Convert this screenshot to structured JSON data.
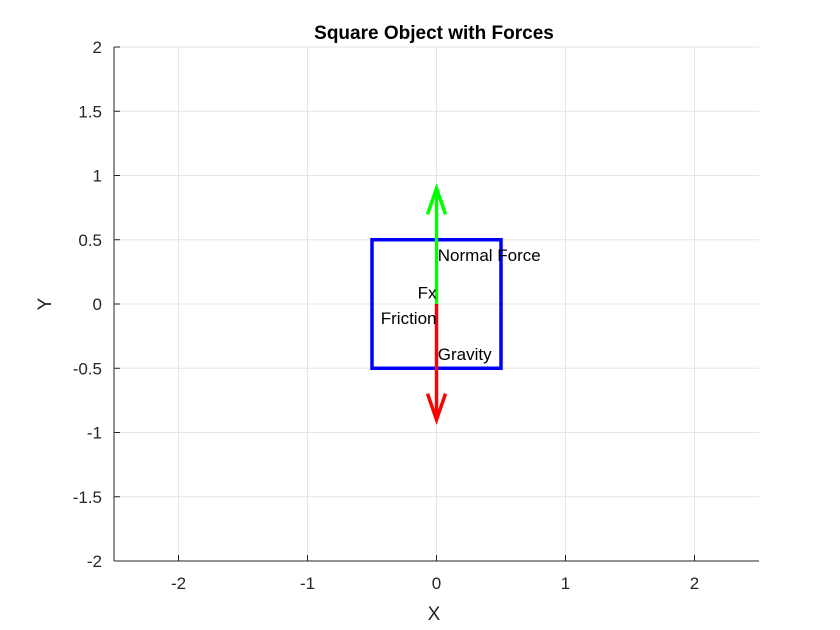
{
  "chart_data": {
    "type": "diagram",
    "title": "Square Object with Forces",
    "xlabel": "X",
    "ylabel": "Y",
    "xlim": [
      -2.5,
      2.5
    ],
    "ylim": [
      -2,
      2
    ],
    "xticks": [
      -2,
      -1,
      0,
      1,
      2
    ],
    "yticks": [
      -2,
      -1.5,
      -1,
      -0.5,
      0,
      0.5,
      1,
      1.5,
      2
    ],
    "xtick_labels": [
      "-2",
      "-1",
      "0",
      "1",
      "2"
    ],
    "ytick_labels": [
      "-2",
      "-1.5",
      "-1",
      "-0.5",
      "0",
      "0.5",
      "1",
      "1.5",
      "2"
    ],
    "grid": true,
    "square": {
      "corners": [
        [
          -0.5,
          -0.5
        ],
        [
          0.5,
          -0.5
        ],
        [
          0.5,
          0.5
        ],
        [
          -0.5,
          0.5
        ]
      ],
      "color": "#0000ff"
    },
    "forces": [
      {
        "name": "Normal Force",
        "origin": [
          0,
          0
        ],
        "vector": [
          0,
          0.9
        ],
        "color": "#00ff00"
      },
      {
        "name": "Gravity",
        "origin": [
          0,
          0
        ],
        "vector": [
          0,
          -0.9
        ],
        "color": "#ff0000"
      }
    ],
    "annotations": [
      {
        "text": "Normal Force",
        "x": 0.01,
        "y": 0.38,
        "align": "start"
      },
      {
        "text": "Fx",
        "x": 0.0,
        "y": 0.09,
        "align": "end"
      },
      {
        "text": "Friction",
        "x": 0.0,
        "y": -0.11,
        "align": "end"
      },
      {
        "text": "Gravity",
        "x": 0.01,
        "y": -0.39,
        "align": "start"
      }
    ]
  }
}
